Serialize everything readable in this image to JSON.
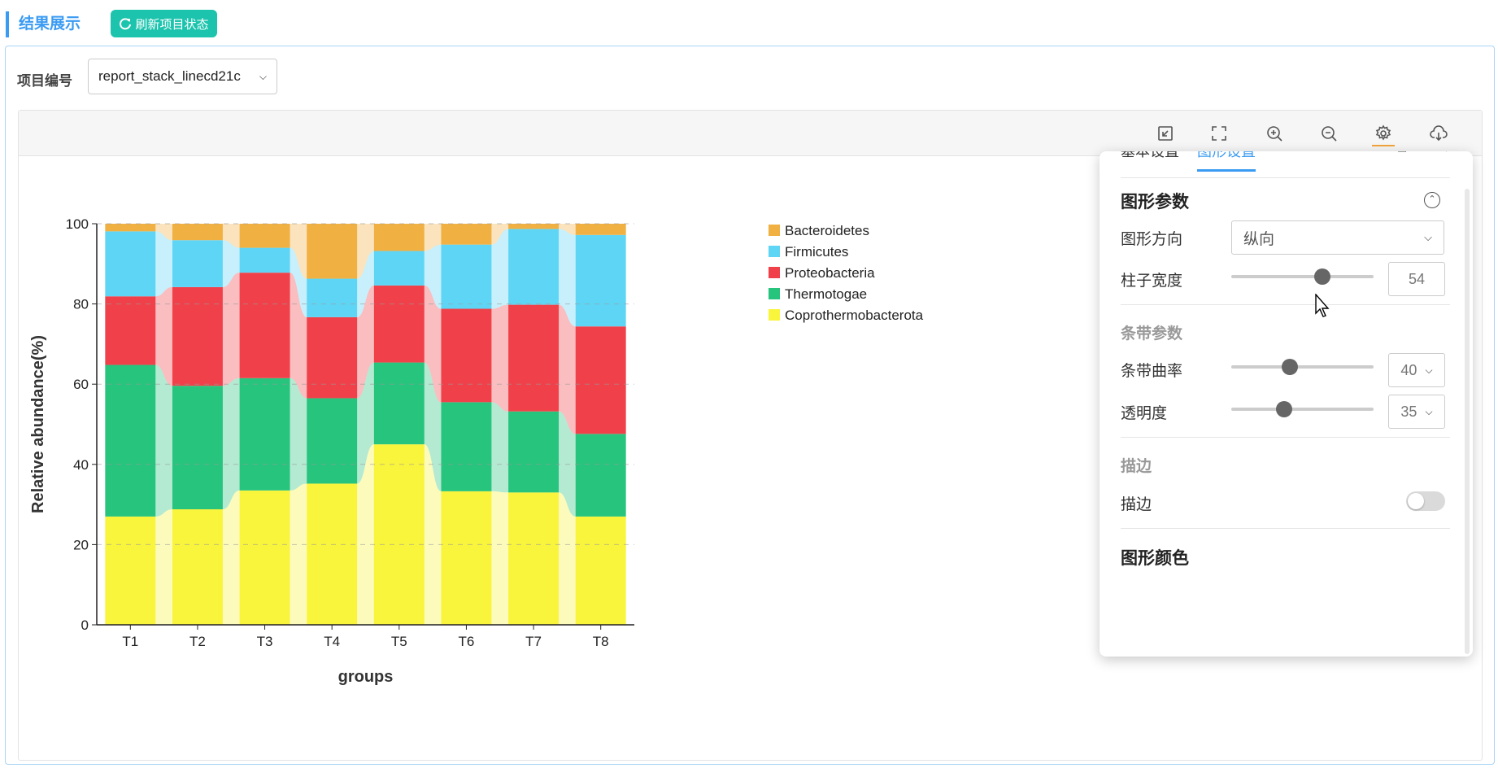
{
  "header": {
    "title": "结果展示",
    "refresh_label": "刷新项目状态"
  },
  "project": {
    "label": "项目编号",
    "selected": "report_stack_linecd21c"
  },
  "toolbar": {
    "tools": [
      "restore-icon",
      "fullscreen-icon",
      "zoom-in-icon",
      "zoom-out-icon",
      "gear-icon",
      "cloud-download-icon"
    ]
  },
  "chart_data": {
    "type": "bar",
    "stacked": true,
    "xlabel": "groups",
    "ylabel": "Relative abundance(%)",
    "ylim": [
      0,
      100
    ],
    "yticks": [
      "0",
      "20",
      "40",
      "60",
      "80",
      "100"
    ],
    "categories": [
      "T1",
      "T2",
      "T3",
      "T4",
      "T5",
      "T6",
      "T7",
      "T8"
    ],
    "series": [
      {
        "name": "Coprothermobacterota",
        "color": "#f9f43c",
        "values": [
          27,
          28.8,
          33.5,
          35.2,
          45,
          33.3,
          33,
          27
        ]
      },
      {
        "name": "Thermotogae",
        "color": "#27c47d",
        "values": [
          37.8,
          30.8,
          28,
          21.3,
          20.4,
          22.2,
          20.2,
          20.6
        ]
      },
      {
        "name": "Proteobacteria",
        "color": "#f0414a",
        "values": [
          17.1,
          24.6,
          26.3,
          20.2,
          19.2,
          23.3,
          26.6,
          26.8
        ]
      },
      {
        "name": "Firmicutes",
        "color": "#5fd5f6",
        "values": [
          16.2,
          11.7,
          6.2,
          9.6,
          8.6,
          16,
          18.9,
          22.8
        ]
      },
      {
        "name": "Bacteroidetes",
        "color": "#f0b042",
        "values": [
          1.9,
          4.1,
          6,
          13.7,
          6.8,
          5.2,
          1.3,
          2.8
        ]
      }
    ],
    "legend_order": [
      "Bacteroidetes",
      "Firmicutes",
      "Proteobacteria",
      "Thermotogae",
      "Coprothermobacterota"
    ],
    "legend_position": "top-right",
    "grid": true
  },
  "settings": {
    "tabs": [
      "基本设置",
      "图形设置"
    ],
    "active_tab": "图形设置",
    "graphic_params_title": "图形参数",
    "orientation_label": "图形方向",
    "orientation_value": "纵向",
    "bar_width_label": "柱子宽度",
    "bar_width_value": "54",
    "bar_width_pct": 0.64,
    "band_params_title": "条带参数",
    "band_curve_label": "条带曲率",
    "band_curve_value": "40",
    "band_curve_pct": 0.41,
    "opacity_label": "透明度",
    "opacity_value": "35",
    "opacity_pct": 0.37,
    "stroke_title": "描边",
    "stroke_label": "描边",
    "stroke_on": false,
    "graphic_colors_title": "图形颜色"
  }
}
